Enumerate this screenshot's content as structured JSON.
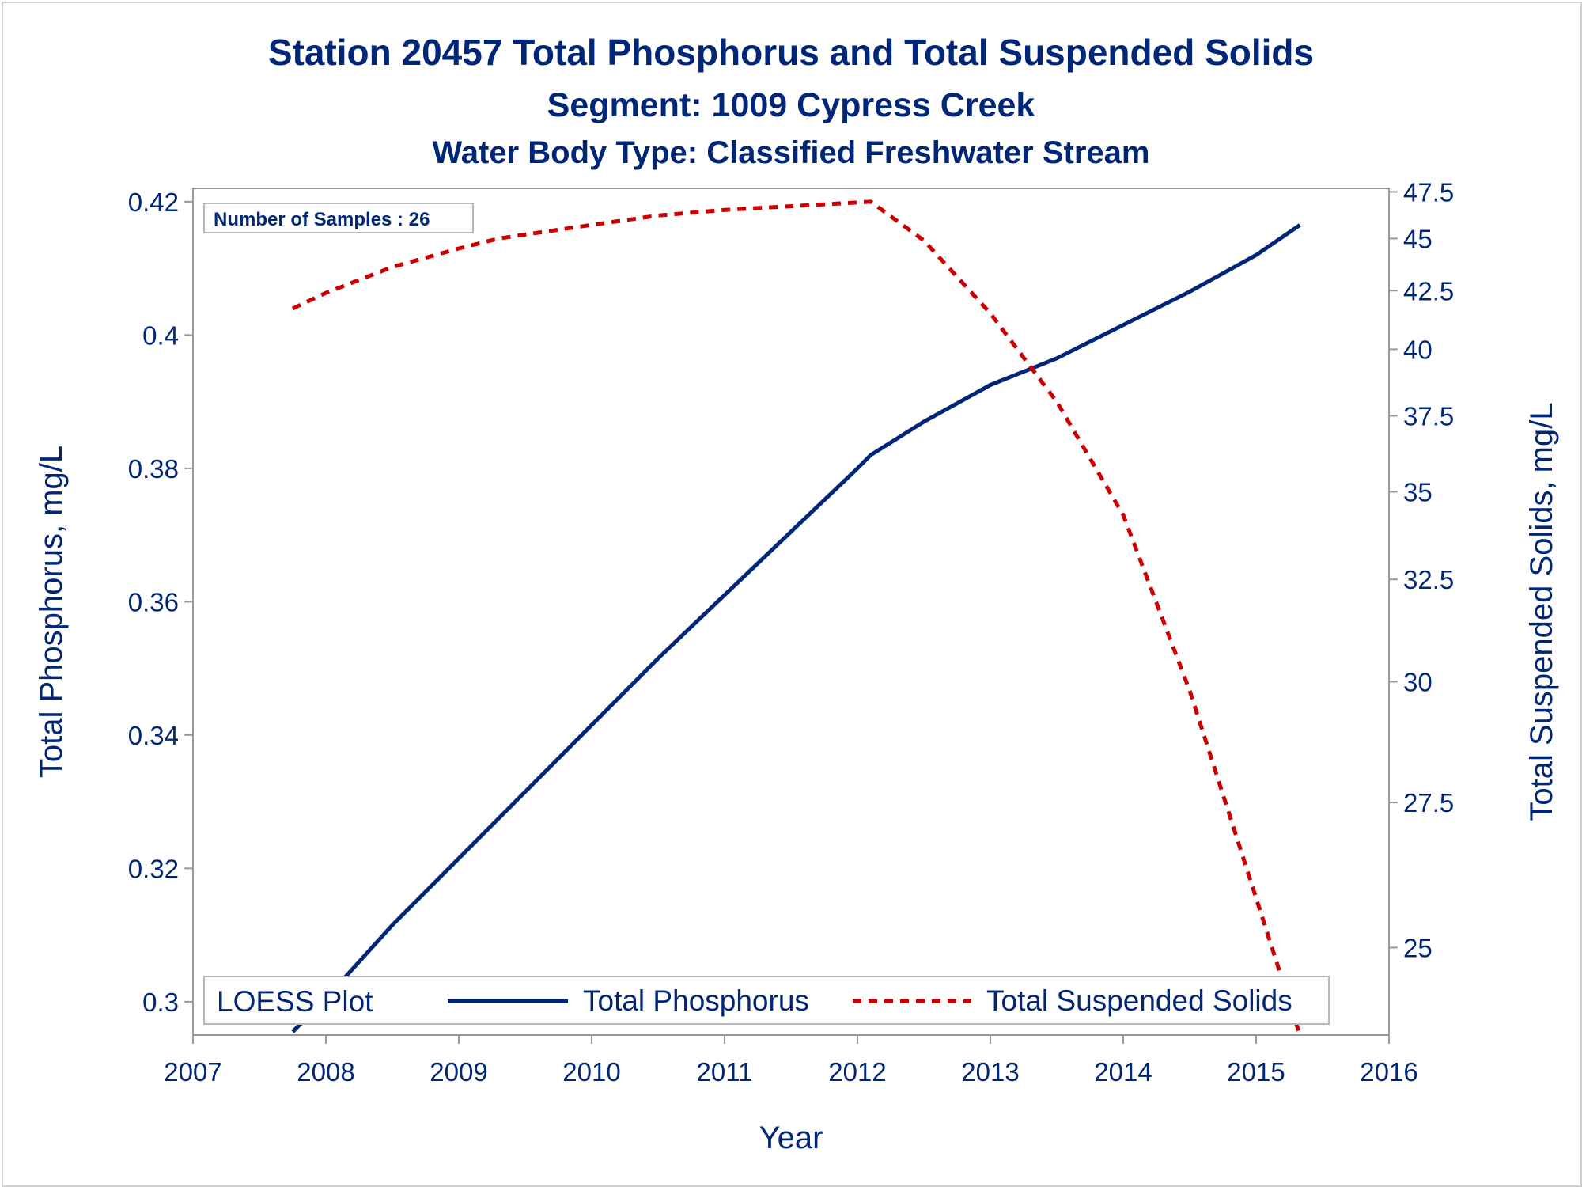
{
  "chart_data": {
    "type": "line",
    "title": "Station 20457  Total Phosphorus and Total Suspended Solids",
    "subtitle": "Segment: 1009  Cypress Creek",
    "subtitle2": "Water Body Type: Classified Freshwater Stream",
    "xlabel": "Year",
    "ylabel": "Total Phosphorus, mg/L",
    "y2label": "Total Suspended Solids, mg/L",
    "xlim": [
      2007,
      2016
    ],
    "ylim": [
      0.295,
      0.422
    ],
    "y2lim": [
      23.7,
      47.7
    ],
    "x_ticks": [
      "2007",
      "2008",
      "2009",
      "2010",
      "2011",
      "2012",
      "2013",
      "2014",
      "2015",
      "2016"
    ],
    "y_ticks": [
      "0.3",
      "0.32",
      "0.34",
      "0.36",
      "0.38",
      "0.4",
      "0.42"
    ],
    "y2_ticks": [
      "25",
      "27.5",
      "30",
      "32.5",
      "35",
      "37.5",
      "40",
      "42.5",
      "45",
      "47.5"
    ],
    "y2_scale": "reciprocal",
    "inset_label": "Number of Samples : 26",
    "legend": {
      "title": "LOESS Plot",
      "placement": "bottom-inside",
      "entries": [
        "Total Phosphorus",
        "Total Suspended Solids"
      ]
    },
    "series": [
      {
        "name": "Total Phosphorus",
        "axis": "left",
        "color": "#002677",
        "style": "solid",
        "x": [
          2007.75,
          2008.0,
          2008.5,
          2009.0,
          2009.5,
          2010.0,
          2010.5,
          2011.0,
          2011.5,
          2012.0,
          2012.1,
          2012.5,
          2013.0,
          2013.5,
          2014.0,
          2014.5,
          2015.0,
          2015.33
        ],
        "y": [
          0.2955,
          0.3005,
          0.3115,
          0.3215,
          0.3315,
          0.3415,
          0.3515,
          0.361,
          0.3705,
          0.38,
          0.382,
          0.387,
          0.3925,
          0.3965,
          0.4015,
          0.4065,
          0.412,
          0.4165
        ]
      },
      {
        "name": "Total Suspended Solids",
        "axis": "right",
        "color": "#cc0000",
        "style": "dashed",
        "x": [
          2007.75,
          2008.0,
          2008.5,
          2009.0,
          2009.3,
          2009.5,
          2010.0,
          2010.5,
          2011.0,
          2011.5,
          2012.1,
          2012.5,
          2013.0,
          2013.5,
          2014.0,
          2014.5,
          2015.0,
          2015.33
        ],
        "y": [
          41.7,
          42.4,
          43.6,
          44.5,
          45.0,
          45.2,
          45.7,
          46.2,
          46.5,
          46.7,
          46.95,
          44.9,
          41.5,
          38.0,
          34.3,
          29.8,
          25.8,
          23.7
        ]
      }
    ]
  }
}
